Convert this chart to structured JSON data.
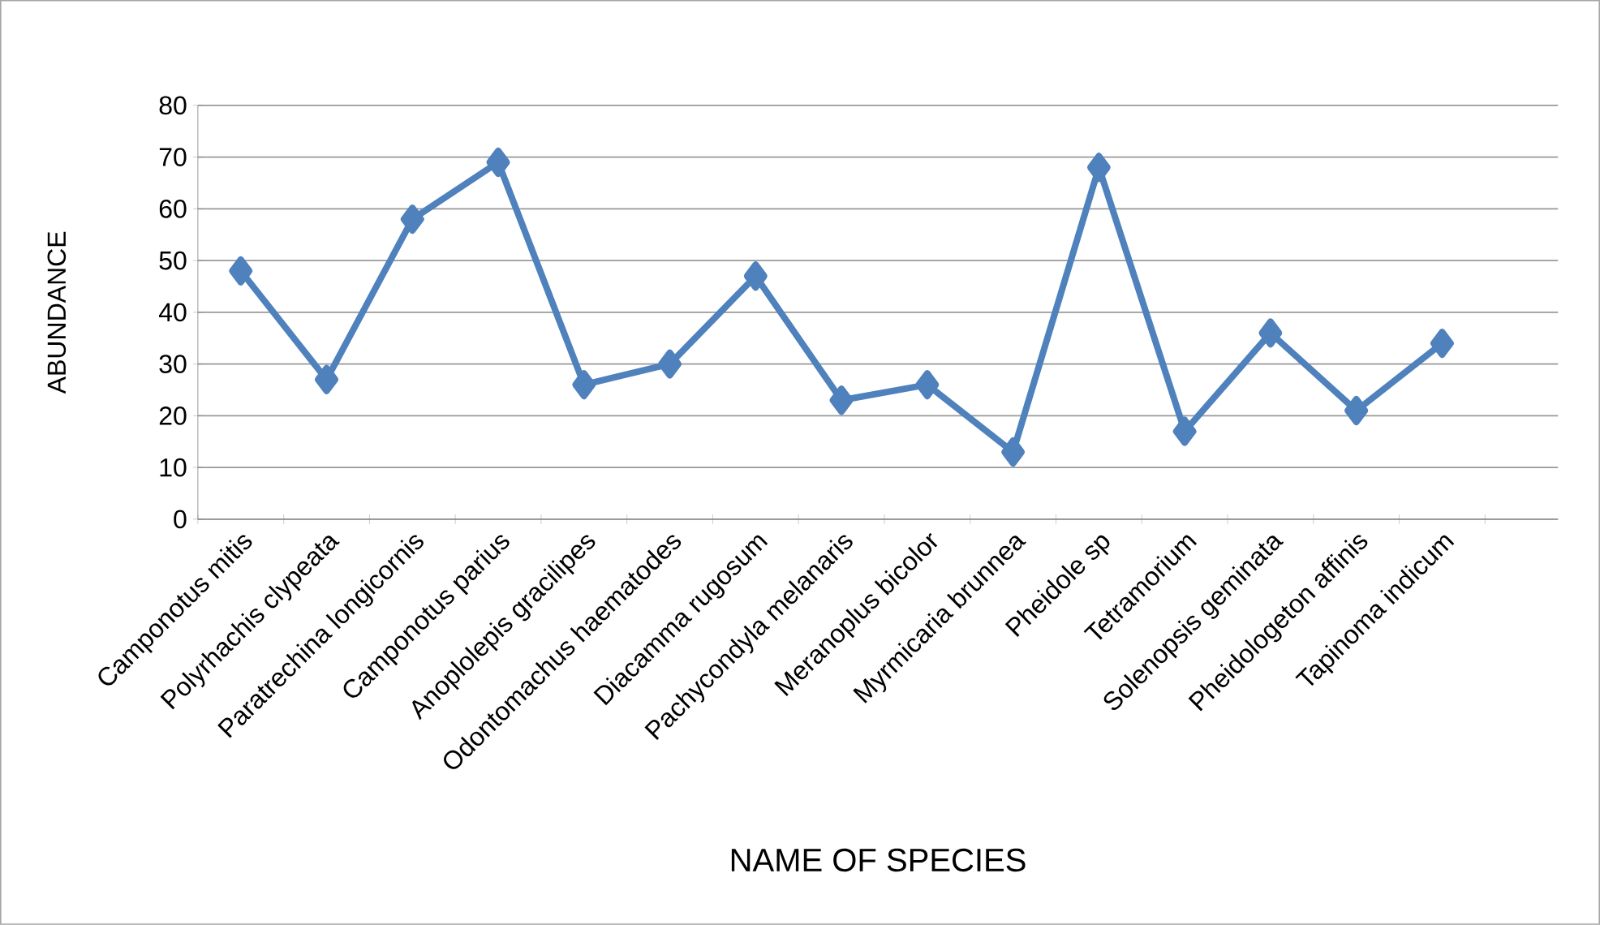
{
  "chart_data": {
    "type": "line",
    "xlabel": "NAME OF SPECIES",
    "ylabel": "ABUNDANCE",
    "categories": [
      "Camponotus mitis",
      "Polyrhachis clypeata",
      "Paratrechina longicornis",
      "Camponotus parius",
      "Anoplolepis gracilipes",
      "Odontomachus haematodes",
      "Diacamma rugosum",
      "Pachycondyla melanaris",
      "Meranoplus bicolor",
      "Myrmicaria brunnea",
      "Pheidole sp",
      "Tetramorium",
      "Solenopsis geminata",
      "Pheidologeton affinis",
      "Tapinoma indicum"
    ],
    "values": [
      48,
      27,
      58,
      69,
      26,
      30,
      47,
      23,
      26,
      13,
      68,
      17,
      36,
      21,
      34
    ],
    "color": "#4f81bd",
    "marker": "diamond",
    "line_style": "solid",
    "ylim": [
      0,
      80
    ],
    "yticks": [
      0,
      10,
      20,
      30,
      40,
      50,
      60,
      70,
      80
    ],
    "grid": "y"
  }
}
